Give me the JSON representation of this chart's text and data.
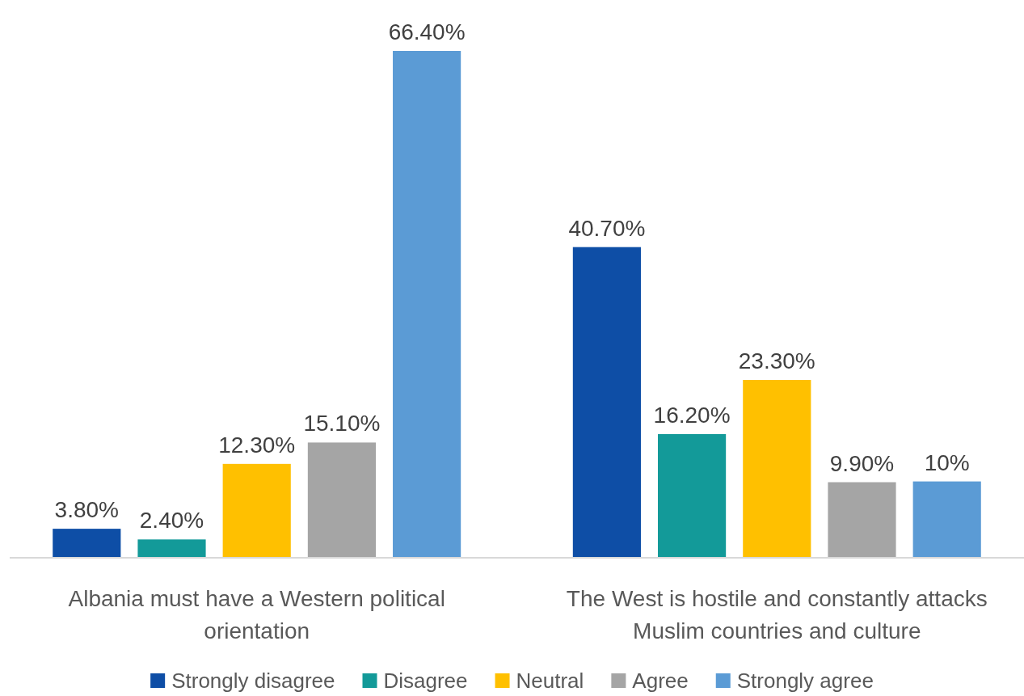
{
  "chart_data": {
    "type": "bar",
    "categories": [
      "Albania must have a Western political orientation",
      "The West is hostile and constantly attacks Muslim countries and culture"
    ],
    "series": [
      {
        "name": "Strongly disagree",
        "color": "#0e4ea6",
        "values": [
          3.8,
          40.7
        ],
        "value_labels": [
          "3.80%",
          "40.70%"
        ]
      },
      {
        "name": "Disagree",
        "color": "#139a99",
        "values": [
          2.4,
          16.2
        ],
        "value_labels": [
          "2.40%",
          "16.20%"
        ]
      },
      {
        "name": "Neutral",
        "color": "#ffc000",
        "values": [
          12.3,
          23.3
        ],
        "value_labels": [
          "12.30%",
          "23.30%"
        ]
      },
      {
        "name": "Agree",
        "color": "#a5a5a5",
        "values": [
          15.1,
          9.9
        ],
        "value_labels": [
          "15.10%",
          "9.90%"
        ]
      },
      {
        "name": "Strongly agree",
        "color": "#5b9bd5",
        "values": [
          66.4,
          10
        ],
        "value_labels": [
          "66.40%",
          "10%"
        ]
      }
    ],
    "legend": "bottom"
  }
}
